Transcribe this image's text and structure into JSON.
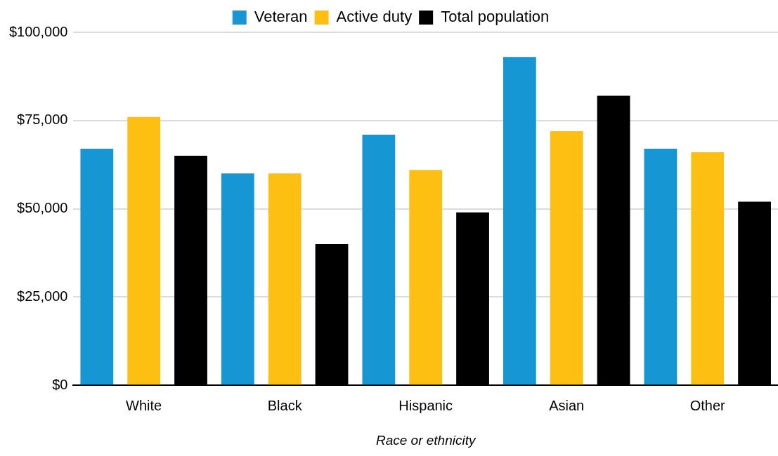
{
  "chart_data": {
    "type": "bar",
    "xlabel": "Race or ethnicity",
    "categories": [
      "White",
      "Black",
      "Hispanic",
      "Asian",
      "Other"
    ],
    "series": [
      {
        "name": "Veteran",
        "color": "#1696d2",
        "values": [
          67000,
          60000,
          71000,
          93000,
          67000
        ]
      },
      {
        "name": "Active duty",
        "color": "#fdbf11",
        "values": [
          76000,
          60000,
          61000,
          72000,
          66000
        ]
      },
      {
        "name": "Total population",
        "color": "#000000",
        "values": [
          65000,
          40000,
          49000,
          82000,
          52000
        ]
      }
    ],
    "ylim": [
      0,
      100000
    ],
    "yticks": [
      {
        "value": 0,
        "label": "$0"
      },
      {
        "value": 25000,
        "label": "$25,000"
      },
      {
        "value": 50000,
        "label": "$50,000"
      },
      {
        "value": 75000,
        "label": "$75,000"
      },
      {
        "value": 100000,
        "label": "$100,000"
      }
    ],
    "grid": "y",
    "legend": "top"
  }
}
